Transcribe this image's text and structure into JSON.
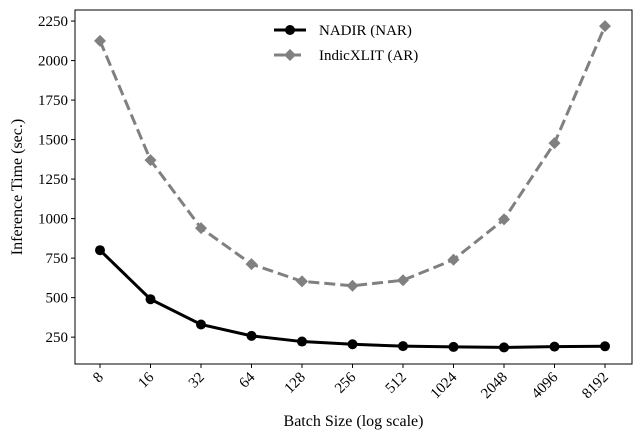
{
  "chart_data": {
    "type": "line",
    "title": "",
    "xlabel": "Batch Size (log scale)",
    "ylabel": "Inference Time (sec.)",
    "x_scale": "log2",
    "categories": [
      "8",
      "16",
      "32",
      "64",
      "128",
      "256",
      "512",
      "1024",
      "2048",
      "4096",
      "8192"
    ],
    "yticks": [
      250,
      500,
      750,
      1000,
      1250,
      1500,
      1750,
      2000,
      2250
    ],
    "ylim": [
      80,
      2320
    ],
    "grid": false,
    "legend_position": "top-center",
    "series": [
      {
        "name": "NADIR (NAR)",
        "color": "#000000",
        "marker": "circle",
        "linestyle": "solid",
        "values": [
          800,
          490,
          330,
          258,
          222,
          205,
          193,
          188,
          185,
          190,
          192
        ]
      },
      {
        "name": "IndicXLIT (AR)",
        "color": "#808080",
        "marker": "diamond",
        "linestyle": "dashed",
        "values": [
          2125,
          1370,
          940,
          712,
          603,
          575,
          610,
          740,
          995,
          1478,
          2218
        ]
      }
    ]
  }
}
